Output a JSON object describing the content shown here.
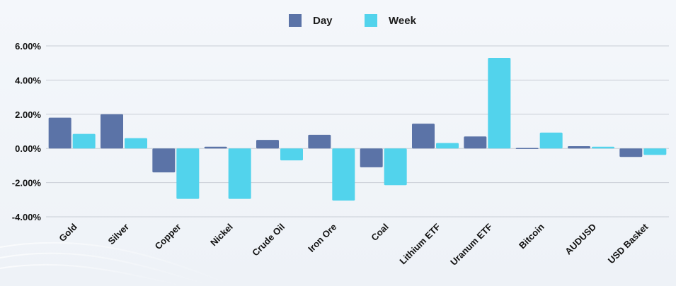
{
  "chart_data": {
    "type": "bar",
    "categories": [
      "Gold",
      "Silver",
      "Copper",
      "Nickel",
      "Crude Oil",
      "Iron Ore",
      "Coal",
      "Lithium ETF",
      "Uranum ETF",
      "Bitcoin",
      "AUDUSD",
      "USD Basket"
    ],
    "series": [
      {
        "name": "Day",
        "color": "#5b73a7",
        "values": [
          1.8,
          2.0,
          -1.4,
          0.1,
          0.5,
          0.8,
          -1.1,
          1.45,
          0.7,
          0.03,
          0.13,
          -0.5
        ]
      },
      {
        "name": "Week",
        "color": "#52d3ec",
        "values": [
          0.85,
          0.6,
          -2.95,
          -2.95,
          -0.7,
          -3.05,
          -2.15,
          0.32,
          5.3,
          0.93,
          0.1,
          -0.38
        ]
      }
    ],
    "yticks": [
      "6.00%",
      "4.00%",
      "2.00%",
      "0.00%",
      "-2.00%",
      "-4.00%"
    ],
    "ylim": [
      -4,
      6
    ],
    "grid": true,
    "legend": "top-center"
  }
}
